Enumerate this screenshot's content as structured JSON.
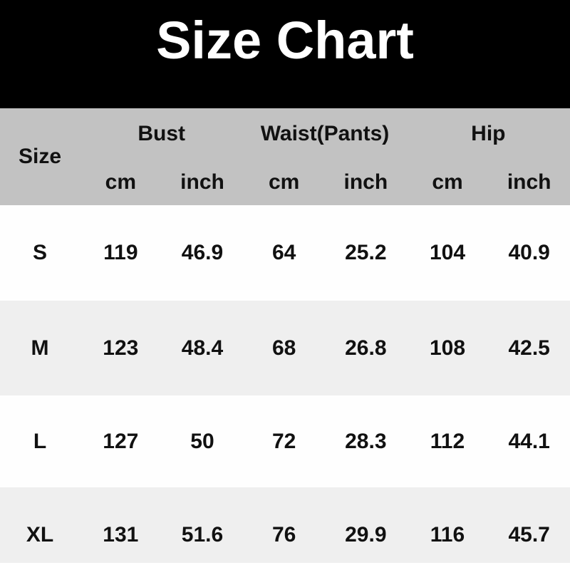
{
  "title": "Size Chart",
  "colors": {
    "title_band_bg": "#000000",
    "title_text": "#ffffff",
    "header_bg": "#c2c2c2",
    "row_bg": "#fefefe",
    "row_alt_bg": "#efefef",
    "table_text": "#111111"
  },
  "chart_data": {
    "type": "table",
    "title": "Size Chart",
    "layout": "grouped column headers (Bust, Waist(Pants), Hip) each split into cm and inch sub-columns; rows alternate white / light gray",
    "header": {
      "size": "Size",
      "groups": [
        "Bust",
        "Waist(Pants)",
        "Hip"
      ],
      "units": [
        "cm",
        "inch",
        "cm",
        "inch",
        "cm",
        "inch"
      ]
    },
    "columns": [
      "Size",
      "Bust cm",
      "Bust inch",
      "Waist(Pants) cm",
      "Waist(Pants) inch",
      "Hip cm",
      "Hip inch"
    ],
    "rows": [
      {
        "size": "S",
        "values": [
          119,
          46.9,
          64,
          25.2,
          104,
          40.9
        ]
      },
      {
        "size": "M",
        "values": [
          123,
          48.4,
          68,
          26.8,
          108,
          42.5
        ]
      },
      {
        "size": "L",
        "values": [
          127,
          50,
          72,
          28.3,
          112,
          44.1
        ]
      },
      {
        "size": "XL",
        "values": [
          131,
          51.6,
          76,
          29.9,
          116,
          45.7
        ]
      }
    ]
  }
}
